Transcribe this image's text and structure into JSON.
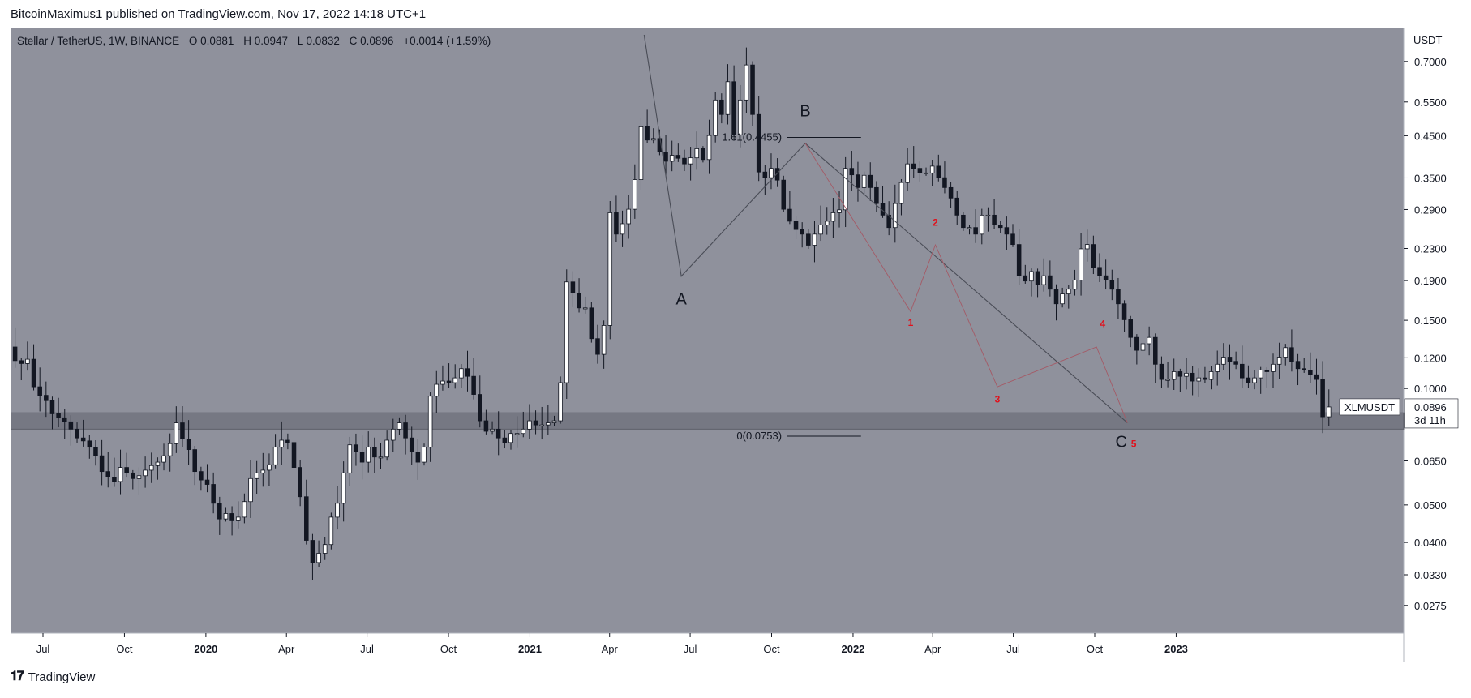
{
  "header": {
    "credit": "BitcoinMaximus1 published on TradingView.com, Nov 17, 2022 14:18 UTC+1"
  },
  "footer": {
    "brand": "TradingView",
    "logo_icon": "tradingview-logo-icon"
  },
  "colors": {
    "plot_bg": "#8f919c",
    "axis_bg": "#ffffff",
    "bull_candle": "#ffffff",
    "bear_candle": "#131722",
    "wick": "#131722",
    "zone": "#6e707b",
    "pattern_line": "#4a4d57",
    "subwave_line": "#a45a66",
    "wave_label_red": "#e0111c"
  },
  "chart_data": {
    "type": "candlestick",
    "symbol_line": {
      "name": "Stellar / TetherUS, 1W, BINANCE",
      "o_label": "O",
      "o_value": "0.0881",
      "h_label": "H",
      "h_value": "0.0947",
      "l_label": "L",
      "l_value": "0.0832",
      "c_label": "C",
      "c_value": "0.0896",
      "change": "+0.0014 (+1.59%)"
    },
    "y_axis": {
      "unit": "USDT",
      "scale": "log",
      "range": [
        0.024,
        0.82
      ],
      "ticks": [
        "0.7000",
        "0.5500",
        "0.4500",
        "0.3500",
        "0.2900",
        "0.2300",
        "0.1900",
        "0.1500",
        "0.1200",
        "0.1000",
        "0.0650",
        "0.0500",
        "0.0400",
        "0.0330",
        "0.0275"
      ]
    },
    "x_axis": {
      "ticks": [
        {
          "label": "Jul",
          "bold": false,
          "date": "2019-07-01"
        },
        {
          "label": "Oct",
          "bold": false,
          "date": "2019-10-01"
        },
        {
          "label": "2020",
          "bold": true,
          "date": "2020-01-01"
        },
        {
          "label": "Apr",
          "bold": false,
          "date": "2020-04-01"
        },
        {
          "label": "Jul",
          "bold": false,
          "date": "2020-07-01"
        },
        {
          "label": "Oct",
          "bold": false,
          "date": "2020-10-01"
        },
        {
          "label": "2021",
          "bold": true,
          "date": "2021-01-01"
        },
        {
          "label": "Apr",
          "bold": false,
          "date": "2021-04-01"
        },
        {
          "label": "Jul",
          "bold": false,
          "date": "2021-07-01"
        },
        {
          "label": "Oct",
          "bold": false,
          "date": "2021-10-01"
        },
        {
          "label": "2022",
          "bold": true,
          "date": "2022-01-01"
        },
        {
          "label": "Apr",
          "bold": false,
          "date": "2022-04-01"
        },
        {
          "label": "Jul",
          "bold": false,
          "date": "2022-07-01"
        },
        {
          "label": "Oct",
          "bold": false,
          "date": "2022-10-01"
        },
        {
          "label": "2023",
          "bold": true,
          "date": "2023-01-01"
        }
      ]
    },
    "start_date": "2019-05-20",
    "last_price": {
      "label": "XLMUSDT",
      "value": "0.0896",
      "countdown": "3d 11h"
    },
    "support_zone": {
      "low": 0.0785,
      "high": 0.0865
    },
    "fib_levels": [
      {
        "label": "1.61(0.4455)",
        "value": 0.4455,
        "from": "2021-10-18",
        "to": "2022-01-10"
      },
      {
        "label": "0(0.0753)",
        "value": 0.0753,
        "from": "2021-10-18",
        "to": "2022-01-10"
      }
    ],
    "abc_pattern": {
      "line": [
        {
          "date": "2021-05-10",
          "price": 0.82
        },
        {
          "date": "2021-06-21",
          "price": 0.195
        },
        {
          "date": "2021-11-08",
          "price": 0.43
        },
        {
          "date": "2022-11-07",
          "price": 0.0815
        }
      ],
      "labels": [
        {
          "text": "A",
          "date": "2021-06-21",
          "price": 0.165
        },
        {
          "text": "B",
          "date": "2021-11-08",
          "price": 0.505
        },
        {
          "text": "C",
          "date": "2022-10-31",
          "price": 0.0705
        }
      ]
    },
    "subwaves": {
      "line": [
        {
          "date": "2021-11-08",
          "price": 0.43
        },
        {
          "date": "2022-03-07",
          "price": 0.158
        },
        {
          "date": "2022-04-04",
          "price": 0.235
        },
        {
          "date": "2022-06-13",
          "price": 0.101
        },
        {
          "date": "2022-10-03",
          "price": 0.128
        },
        {
          "date": "2022-11-07",
          "price": 0.0815
        }
      ],
      "labels": [
        {
          "text": "1",
          "date": "2022-03-07",
          "price": 0.145
        },
        {
          "text": "2",
          "date": "2022-04-04",
          "price": 0.263
        },
        {
          "text": "3",
          "date": "2022-06-13",
          "price": 0.092
        },
        {
          "text": "4",
          "date": "2022-10-10",
          "price": 0.144
        },
        {
          "text": "5",
          "date": "2022-11-14",
          "price": 0.0705
        }
      ]
    },
    "closes": [
      0.128,
      0.118,
      0.116,
      0.119,
      0.101,
      0.096,
      0.093,
      0.086,
      0.084,
      0.082,
      0.0785,
      0.0745,
      0.0732,
      0.0705,
      0.067,
      0.061,
      0.059,
      0.0575,
      0.0625,
      0.0605,
      0.0585,
      0.0595,
      0.0615,
      0.0632,
      0.0645,
      0.067,
      0.072,
      0.0815,
      0.074,
      0.0695,
      0.061,
      0.058,
      0.0565,
      0.0505,
      0.046,
      0.0475,
      0.0455,
      0.0465,
      0.051,
      0.0585,
      0.0605,
      0.0615,
      0.0635,
      0.0705,
      0.0735,
      0.0725,
      0.0625,
      0.0525,
      0.0405,
      0.0355,
      0.0375,
      0.0395,
      0.0465,
      0.0505,
      0.0605,
      0.0715,
      0.0685,
      0.0645,
      0.0705,
      0.0665,
      0.0665,
      0.0735,
      0.0785,
      0.0815,
      0.0745,
      0.0685,
      0.0645,
      0.0705,
      0.0955,
      0.1025,
      0.1045,
      0.1035,
      0.1065,
      0.1125,
      0.1075,
      0.0965,
      0.0825,
      0.0775,
      0.0785,
      0.0745,
      0.0725,
      0.0765,
      0.0765,
      0.0785,
      0.0825,
      0.0805,
      0.0805,
      0.0815,
      0.0825,
      0.1035,
      0.1885,
      0.1765,
      0.1615,
      0.1615,
      0.1345,
      0.1225,
      0.1455,
      0.2845,
      0.2505,
      0.2665,
      0.2905,
      0.3465,
      0.4745,
      0.4385,
      0.4425,
      0.4085,
      0.3865,
      0.4005,
      0.3935,
      0.3805,
      0.3945,
      0.4165,
      0.3905,
      0.4505,
      0.5565,
      0.5105,
      0.6205,
      0.4525,
      0.5565,
      0.6855,
      0.5105,
      0.3625,
      0.3505,
      0.3705,
      0.3455,
      0.2905,
      0.2705,
      0.2575,
      0.2505,
      0.2345,
      0.2505,
      0.2645,
      0.2705,
      0.2845,
      0.2895,
      0.3705,
      0.3565,
      0.3305,
      0.3555,
      0.3305,
      0.3005,
      0.2805,
      0.2605,
      0.3005,
      0.3405,
      0.3805,
      0.3705,
      0.3605,
      0.3605,
      0.3755,
      0.3505,
      0.3305,
      0.3105,
      0.2805,
      0.2605,
      0.2605,
      0.2505,
      0.2805,
      0.2805,
      0.2645,
      0.2605,
      0.2505,
      0.2355,
      0.1955,
      0.1895,
      0.2005,
      0.1855,
      0.1955,
      0.1805,
      0.1655,
      0.1755,
      0.1805,
      0.1905,
      0.2295,
      0.2355,
      0.2055,
      0.1955,
      0.1905,
      0.1805,
      0.1655,
      0.1505,
      0.1355,
      0.1255,
      0.1305,
      0.1355,
      0.1155,
      0.1055,
      0.1055,
      0.1105,
      0.1075,
      0.1095,
      0.1045,
      0.1065,
      0.1055,
      0.1105,
      0.1155,
      0.1205,
      0.1175,
      0.1155,
      0.1065,
      0.1035,
      0.1065,
      0.1115,
      0.1105,
      0.1155,
      0.1205,
      0.1275,
      0.1175,
      0.1125,
      0.1115,
      0.1085,
      0.1055,
      0.0845,
      0.0896
    ]
  }
}
